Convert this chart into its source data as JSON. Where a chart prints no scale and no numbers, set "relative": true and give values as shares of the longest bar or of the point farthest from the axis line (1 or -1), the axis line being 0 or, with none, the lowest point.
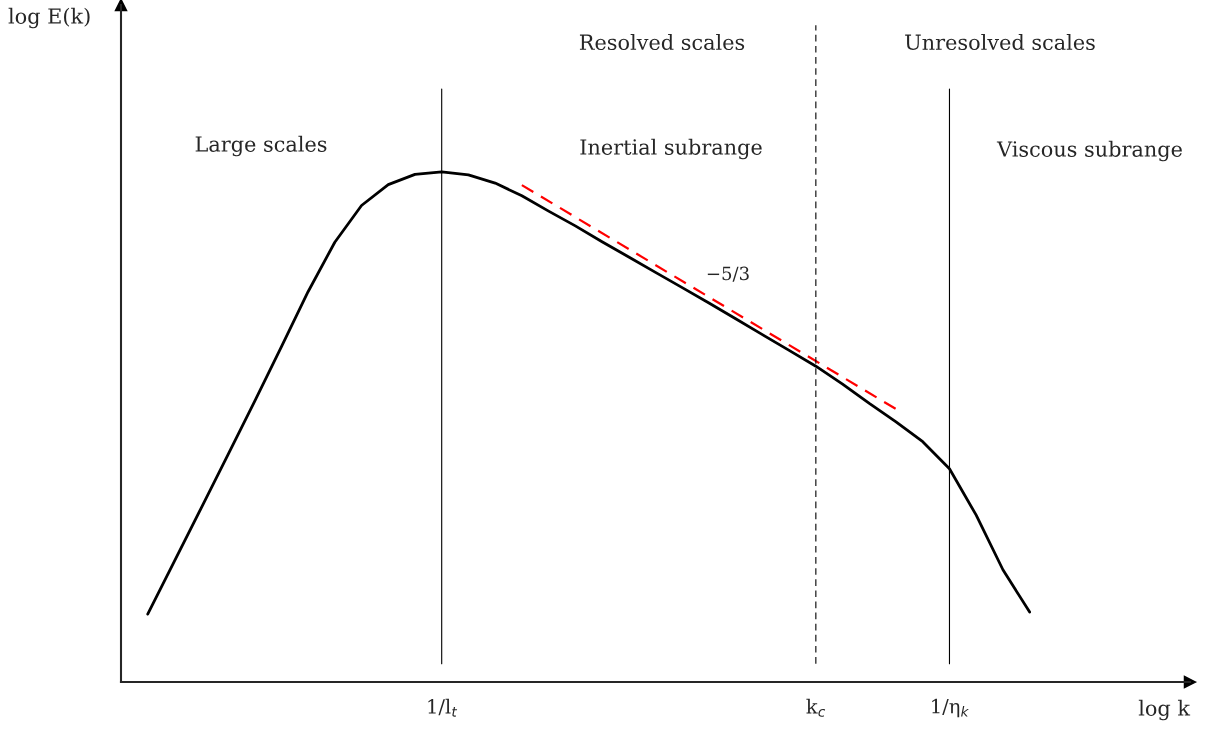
{
  "chart_data": {
    "type": "line",
    "relative": true,
    "xlabel": "log k",
    "categories": [
      null,
      null,
      null,
      null,
      null,
      null,
      null,
      null,
      null,
      null,
      null,
      null,
      "1/l$_{t}$",
      null,
      null,
      null,
      null,
      null,
      null,
      null,
      null,
      null,
      null,
      null,
      null,
      null,
      "k$_{c}$",
      null,
      null,
      null,
      null,
      "1/η$_{k}$",
      null,
      null,
      null,
      null,
      null,
      null,
      null,
      null,
      null
    ],
    "series": [
      {
        "color": "#000000",
        "line_style": "solid",
        "values": [
          null,
          0.133,
          0.237,
          0.341,
          0.445,
          0.55,
          0.657,
          0.765,
          0.862,
          0.934,
          0.975,
          0.995,
          1.0,
          0.994,
          0.978,
          0.953,
          0.923,
          0.894,
          0.863,
          0.833,
          0.803,
          0.773,
          0.743,
          0.712,
          0.681,
          0.65,
          0.619,
          0.584,
          0.546,
          0.51,
          0.471,
          0.418,
          0.327,
          0.22,
          0.137,
          null,
          null,
          null,
          null,
          null,
          null
        ]
      },
      {
        "color": "#ff0000",
        "line_style": "dashed",
        "values": [
          null,
          null,
          null,
          null,
          null,
          null,
          null,
          null,
          null,
          null,
          null,
          null,
          null,
          null,
          null,
          0.974,
          null,
          null,
          null,
          null,
          null,
          null,
          null,
          null,
          null,
          null,
          null,
          null,
          null,
          0.535,
          null,
          null,
          null,
          null,
          null,
          null,
          null,
          null,
          null,
          null,
          null
        ]
      }
    ],
    "ref_lines": [
      {
        "axis": "x",
        "value": "1/l$_{t}$",
        "line_style": "solid"
      },
      {
        "axis": "x",
        "value": "k$_{c}$",
        "line_style": "dashed"
      },
      {
        "axis": "x",
        "value": "1/η$_{k}$",
        "line_style": "solid"
      }
    ],
    "annotations": [
      "Large scales",
      "Resolved scales",
      "Unresolved scales",
      "Inertial subrange",
      "Viscous subrange",
      "−5/3",
      "log E(k)"
    ],
    "grid": false,
    "legend": false,
    "marker": "none"
  }
}
